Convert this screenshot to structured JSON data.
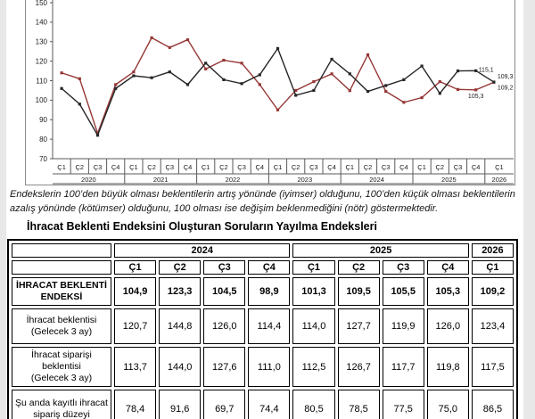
{
  "page": {
    "explanation": "Endekslerin 100’den büyük olması beklentilerin artış yönünde (iyimser) olduğunu, 100’den küçük olması beklentilerin azalış yönünde (kötümser) olduğunu, 100 olması ise değişim beklenmediğini (nötr) göstermektedir.",
    "table_title": "İhracat Beklenti Endeksini Oluşturan Soruların Yayılma Endeksleri"
  },
  "chart_data": {
    "type": "line",
    "title": "",
    "xlabel": "",
    "ylabel": "",
    "ylim": [
      70,
      150
    ],
    "yticks": [
      70,
      80,
      90,
      100,
      110,
      120,
      130,
      140,
      150
    ],
    "grid": false,
    "legend_visible": false,
    "x_axis": {
      "quarter_labels": [
        "Ç1",
        "Ç2",
        "Ç3",
        "Ç4",
        "Ç1",
        "Ç2",
        "Ç3",
        "Ç4",
        "Ç1",
        "Ç2",
        "Ç3",
        "Ç4",
        "Ç1",
        "Ç2",
        "Ç3",
        "Ç4",
        "Ç1",
        "Ç2",
        "Ç3",
        "Ç4",
        "Ç1",
        "Ç2",
        "Ç3",
        "Ç4",
        "Ç1"
      ],
      "year_groups": [
        {
          "year": "2020",
          "count": 4
        },
        {
          "year": "2021",
          "count": 4
        },
        {
          "year": "2022",
          "count": 4
        },
        {
          "year": "2023",
          "count": 4
        },
        {
          "year": "2024",
          "count": 4
        },
        {
          "year": "2025",
          "count": 4
        },
        {
          "year": "2026",
          "count": 1
        }
      ]
    },
    "series": [
      {
        "name": "series-red",
        "color": "#953735",
        "values": [
          114,
          111,
          83,
          108,
          114.5,
          132,
          127,
          131,
          116,
          120.5,
          119,
          108,
          95,
          105,
          109.5,
          113.5,
          104.9,
          123.3,
          104.5,
          98.9,
          101.3,
          109.5,
          105.5,
          105.3,
          109.2
        ]
      },
      {
        "name": "series-black",
        "color": "#262626",
        "values": [
          106,
          98,
          82,
          106,
          112.5,
          111.5,
          114.5,
          108,
          119,
          110.5,
          108.5,
          113,
          126.5,
          102.5,
          105,
          121,
          113.5,
          104.5,
          107.5,
          110.5,
          117.5,
          103.5,
          115,
          115.1,
          109.3
        ]
      }
    ],
    "end_labels": [
      {
        "text": "115,1",
        "series": 1,
        "index": 23
      },
      {
        "text": "109,3",
        "series": 1,
        "index": 24
      },
      {
        "text": "105,3",
        "series": 0,
        "index": 23
      },
      {
        "text": "109,2",
        "series": 0,
        "index": 24
      }
    ]
  },
  "table": {
    "year_headers": [
      {
        "label": "2024",
        "span": 4
      },
      {
        "label": "2025",
        "span": 4
      },
      {
        "label": "2026",
        "span": 1
      }
    ],
    "quarter_headers": [
      "Ç1",
      "Ç2",
      "Ç3",
      "Ç4",
      "Ç1",
      "Ç2",
      "Ç3",
      "Ç4",
      "Ç1"
    ],
    "rows": [
      {
        "label": "İHRACAT BEKLENTİ\nENDEKSİ",
        "bold": true,
        "values": [
          "104,9",
          "123,3",
          "104,5",
          "98,9",
          "101,3",
          "109,5",
          "105,5",
          "105,3",
          "109,2"
        ]
      },
      {
        "label": "İhracat beklentisi\n(Gelecek 3 ay)",
        "bold": false,
        "values": [
          "120,7",
          "144,8",
          "126,0",
          "114,4",
          "114,0",
          "127,7",
          "119,9",
          "126,0",
          "123,4"
        ]
      },
      {
        "label": "İhracat siparişi\nbeklentisi\n(Gelecek 3 ay)",
        "bold": false,
        "values": [
          "113,7",
          "144,0",
          "127,6",
          "111,0",
          "112,5",
          "126,7",
          "117,7",
          "119,8",
          "117,5"
        ]
      },
      {
        "label": "Şu anda kayıtlı ihracat\nsipariş düzeyi",
        "bold": false,
        "values": [
          "78,4",
          "91,6",
          "69,7",
          "74,4",
          "80,5",
          "78,5",
          "77,5",
          "75,0",
          "86,5"
        ]
      }
    ]
  }
}
